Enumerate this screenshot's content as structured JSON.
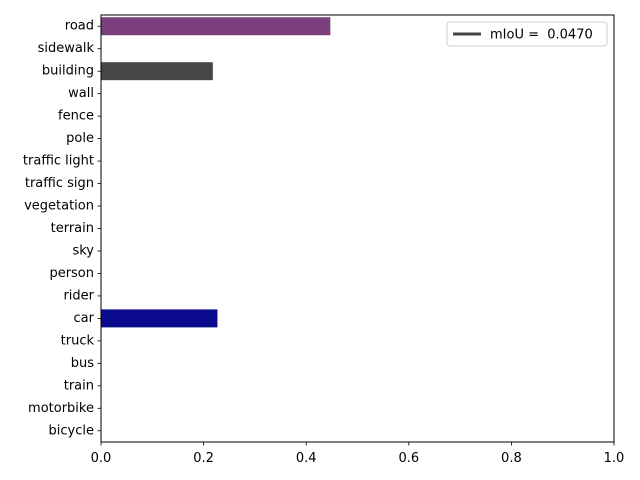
{
  "chart_data": {
    "type": "bar",
    "orientation": "horizontal",
    "categories": [
      "road",
      "sidewalk",
      "building",
      "wall",
      "fence",
      "pole",
      "traffic light",
      "traffic sign",
      "vegetation",
      "terrain",
      "sky",
      "person",
      "rider",
      "car",
      "truck",
      "bus",
      "train",
      "motorbike",
      "bicycle"
    ],
    "values": [
      0.447,
      0,
      0.218,
      0,
      0,
      0,
      0,
      0,
      0,
      0,
      0,
      0,
      0,
      0.227,
      0,
      0,
      0,
      0,
      0
    ],
    "bar_colors": [
      "#7b3f7e",
      "#f4a3b0",
      "#464646",
      "#66669c",
      "#be9999",
      "#999999",
      "#faaa1e",
      "#dcdc00",
      "#6b8e23",
      "#98fb98",
      "#4682b4",
      "#dc143c",
      "#ff0000",
      "#0a0a8c",
      "#000046",
      "#003c64",
      "#005064",
      "#0000e6",
      "#770b20"
    ],
    "xlim": [
      0,
      1.0
    ],
    "xticks": [
      "0.0",
      "0.2",
      "0.4",
      "0.6",
      "0.8",
      "1.0"
    ],
    "xtick_values": [
      0,
      0.2,
      0.4,
      0.6,
      0.8,
      1.0
    ],
    "xlabel": "",
    "ylabel": "",
    "title": "",
    "grid": false,
    "legend": {
      "position": "top-right",
      "entries": [
        {
          "label": "mIoU =  0.0470",
          "color": "#444444"
        }
      ]
    }
  }
}
